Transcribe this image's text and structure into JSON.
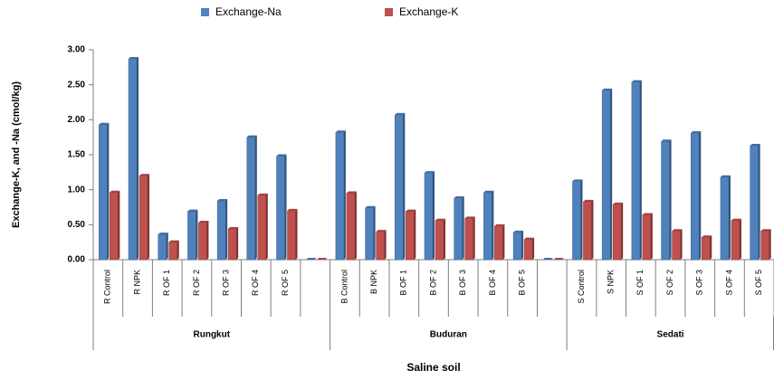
{
  "chart_data": {
    "type": "bar",
    "y_label": "Exchange-K, and -Na  (cmol/kg)",
    "x_label": "Saline soil",
    "categories": [
      "R Control",
      "R NPK",
      "R OF 1",
      "R OF 2",
      "R OF 3",
      "R OF 4",
      "R OF 5",
      null,
      "B Control",
      "B NPK",
      "B OF 1",
      "B OF 2",
      "B OF 3",
      "B OF 4",
      "B OF 5",
      null,
      "S Control",
      "S NPK",
      "S OF 1",
      "S OF 2",
      "S OF 3",
      "S OF 4",
      "S OF 5"
    ],
    "groups": [
      {
        "name": "Rungkut",
        "size": 8
      },
      {
        "name": "Buduran",
        "size": 8
      },
      {
        "name": "Sedati",
        "size": 7
      }
    ],
    "series": [
      {
        "name": "Exchange-Na",
        "color": "#4f81bd",
        "values": [
          1.93,
          2.87,
          0.36,
          0.69,
          0.84,
          1.75,
          1.48,
          0,
          1.82,
          0.74,
          2.07,
          1.24,
          0.88,
          0.96,
          0.39,
          0,
          1.12,
          2.42,
          2.54,
          1.69,
          1.81,
          1.18,
          1.63
        ]
      },
      {
        "name": "Exchange-K",
        "color": "#c0504d",
        "values": [
          0.96,
          1.2,
          0.25,
          0.53,
          0.44,
          0.92,
          0.7,
          0,
          0.95,
          0.4,
          0.69,
          0.56,
          0.59,
          0.48,
          0.29,
          0,
          0.83,
          0.79,
          0.64,
          0.41,
          0.32,
          0.56,
          0.41
        ]
      }
    ],
    "ylim": [
      0,
      3
    ],
    "yticks": [
      {
        "value": 0,
        "label": "0.00"
      },
      {
        "value": 0.5,
        "label": "0.50"
      },
      {
        "value": 1,
        "label": "1.00"
      },
      {
        "value": 1.5,
        "label": "1.50"
      },
      {
        "value": 2,
        "label": "2.00"
      },
      {
        "value": 2.5,
        "label": "2.50"
      },
      {
        "value": 3,
        "label": "3.00"
      }
    ],
    "legend": "top"
  }
}
